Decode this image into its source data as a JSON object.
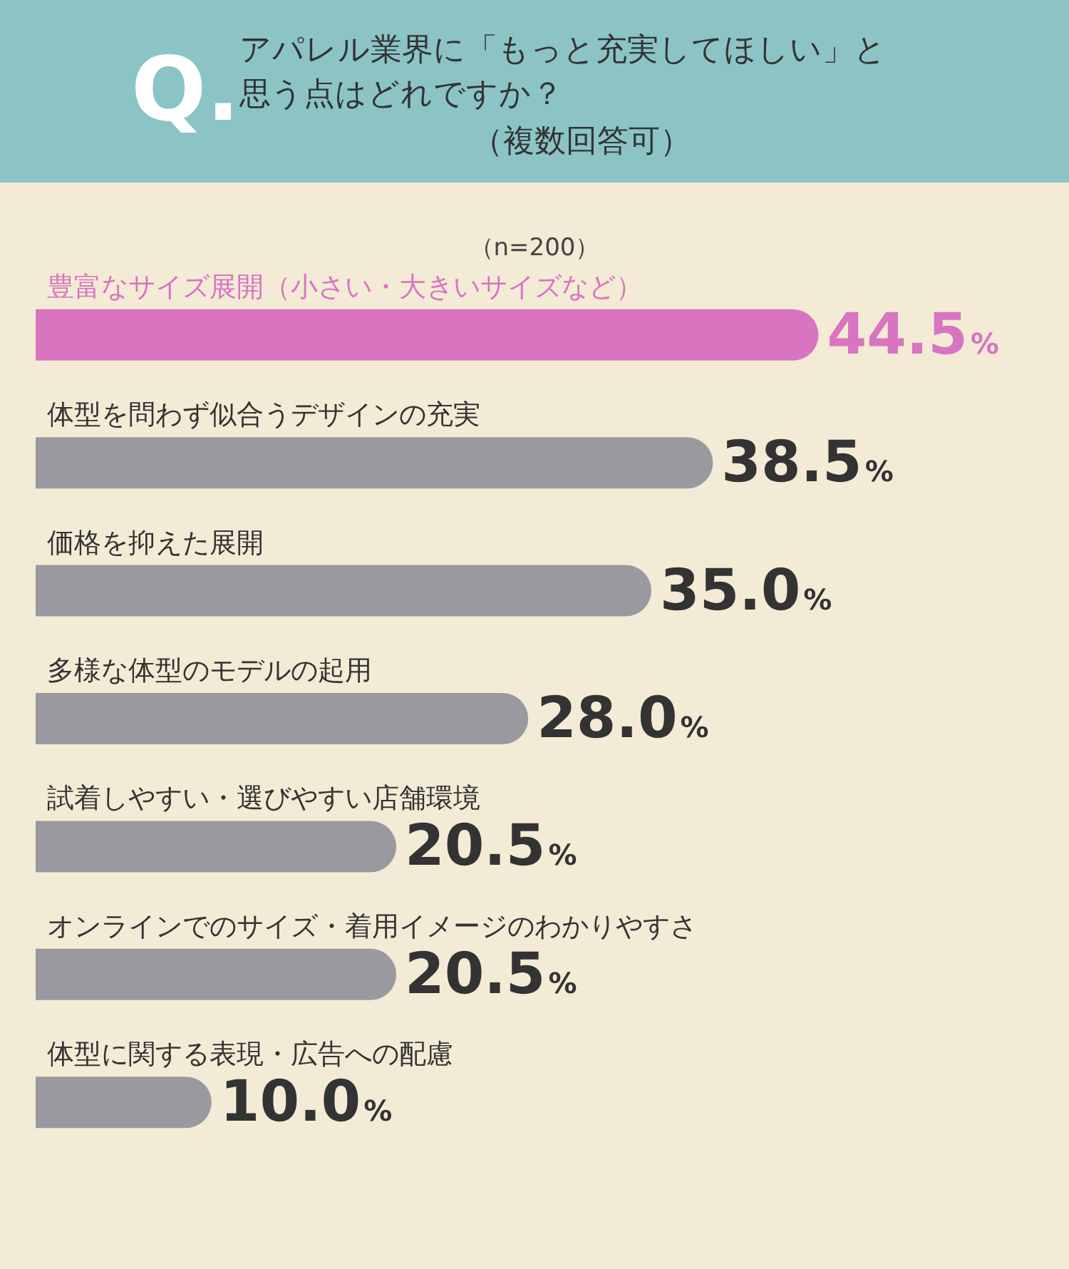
{
  "chart_data": {
    "type": "bar",
    "orientation": "horizontal",
    "title": "アパレル業界に「もっと充実してほしい」と思う点はどれですか？",
    "subtitle": "（複数回答可）",
    "annotations": [
      "Q.",
      "（n=200）"
    ],
    "categories": [
      "豊富なサイズ展開（小さい・大きいサイズなど）",
      "体型を問わず似合うデザインの充実",
      "価格を抑えた展開",
      "多様な体型のモデルの起用",
      "試着しやすい・選びやすい店舗環境",
      "オンラインでのサイズ・着用イメージのわかりやすさ",
      "体型に関する表現・広告への配慮"
    ],
    "values": [
      44.5,
      38.5,
      35.0,
      28.0,
      20.5,
      20.5,
      10.0
    ],
    "value_labels": [
      "44.5%",
      "38.5%",
      "35.0%",
      "28.0%",
      "20.5%",
      "20.5%",
      "10.0%"
    ],
    "colors": [
      "#d874c0",
      "#99999f",
      "#99999f",
      "#99999f",
      "#99999f",
      "#99999f",
      "#99999f"
    ]
  }
}
